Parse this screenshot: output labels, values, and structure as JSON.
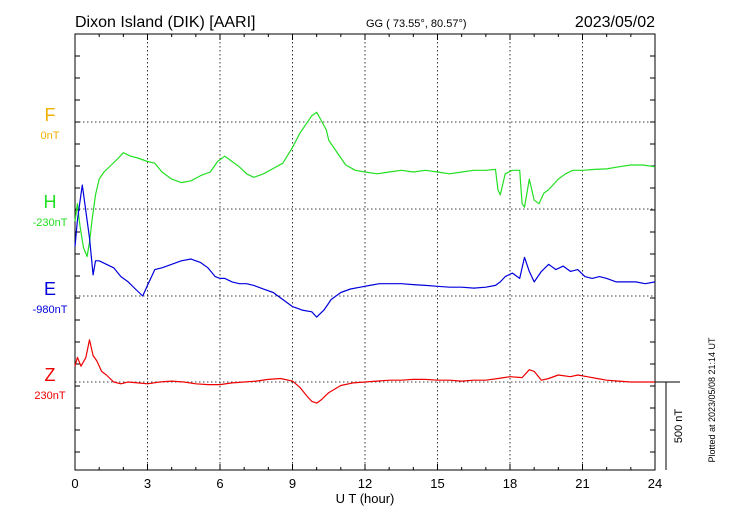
{
  "header": {
    "station": "Dixon Island (DIK)  [AARI]",
    "coords": "GG ( 73.55°,  80.57°)",
    "date": "2023/05/02"
  },
  "side_note": "Plotted at 2023/05/08 21:14 UT",
  "scale_label": "500 nT",
  "chart_data": {
    "type": "line",
    "title": "Dixon Island (DIK)  [AARI]",
    "xlabel": "U T (hour)",
    "xlim": [
      0,
      24
    ],
    "xticks": [
      "0",
      "3",
      "6",
      "9",
      "12",
      "15",
      "18",
      "21",
      "24"
    ],
    "grid": true,
    "series": [
      {
        "name": "F",
        "baseline_label": "0nT",
        "color": "#f0b000",
        "points": []
      },
      {
        "name": "H",
        "baseline_label": "-230nT",
        "color": "#22e022",
        "points": [
          [
            0,
            -300
          ],
          [
            0.1,
            -200
          ],
          [
            0.2,
            -320
          ],
          [
            0.35,
            -450
          ],
          [
            0.5,
            -500
          ],
          [
            0.6,
            -420
          ],
          [
            0.7,
            -300
          ],
          [
            0.85,
            -150
          ],
          [
            1.0,
            -60
          ],
          [
            1.2,
            -20
          ],
          [
            1.5,
            20
          ],
          [
            1.8,
            60
          ],
          [
            2.0,
            90
          ],
          [
            2.3,
            70
          ],
          [
            2.6,
            60
          ],
          [
            3.0,
            40
          ],
          [
            3.3,
            30
          ],
          [
            3.6,
            -20
          ],
          [
            4.0,
            -60
          ],
          [
            4.4,
            -80
          ],
          [
            4.8,
            -70
          ],
          [
            5.2,
            -40
          ],
          [
            5.6,
            -20
          ],
          [
            5.9,
            40
          ],
          [
            6.2,
            70
          ],
          [
            6.5,
            40
          ],
          [
            6.8,
            10
          ],
          [
            7.1,
            -30
          ],
          [
            7.4,
            -50
          ],
          [
            7.8,
            -30
          ],
          [
            8.2,
            0
          ],
          [
            8.6,
            30
          ],
          [
            9.0,
            120
          ],
          [
            9.3,
            200
          ],
          [
            9.6,
            260
          ],
          [
            9.8,
            300
          ],
          [
            10.0,
            320
          ],
          [
            10.2,
            270
          ],
          [
            10.4,
            220
          ],
          [
            10.5,
            160
          ],
          [
            10.7,
            120
          ],
          [
            10.9,
            80
          ],
          [
            11.2,
            20
          ],
          [
            11.6,
            -10
          ],
          [
            12.0,
            -20
          ],
          [
            12.5,
            -30
          ],
          [
            13.0,
            -20
          ],
          [
            13.5,
            -10
          ],
          [
            14.0,
            -20
          ],
          [
            14.5,
            -10
          ],
          [
            15.0,
            -20
          ],
          [
            15.5,
            -30
          ],
          [
            16.0,
            -20
          ],
          [
            16.5,
            -10
          ],
          [
            17.0,
            -10
          ],
          [
            17.4,
            -5
          ],
          [
            17.5,
            -120
          ],
          [
            17.6,
            -150
          ],
          [
            17.8,
            -30
          ],
          [
            18.1,
            -10
          ],
          [
            18.4,
            -10
          ],
          [
            18.5,
            -200
          ],
          [
            18.6,
            -220
          ],
          [
            18.8,
            -60
          ],
          [
            19.0,
            -180
          ],
          [
            19.2,
            -200
          ],
          [
            19.4,
            -140
          ],
          [
            19.6,
            -120
          ],
          [
            19.8,
            -90
          ],
          [
            20.0,
            -60
          ],
          [
            20.3,
            -30
          ],
          [
            20.6,
            -10
          ],
          [
            21.0,
            -10
          ],
          [
            21.5,
            -5
          ],
          [
            22.0,
            -2
          ],
          [
            22.5,
            10
          ],
          [
            23.0,
            20
          ],
          [
            23.5,
            20
          ],
          [
            24.0,
            10
          ]
        ]
      },
      {
        "name": "E",
        "baseline_label": "-980nT",
        "color": "#0000dd",
        "points": [
          [
            0,
            -700
          ],
          [
            0.1,
            -550
          ],
          [
            0.2,
            -450
          ],
          [
            0.3,
            -350
          ],
          [
            0.45,
            -500
          ],
          [
            0.6,
            -650
          ],
          [
            0.75,
            -860
          ],
          [
            0.85,
            -780
          ],
          [
            1.0,
            -780
          ],
          [
            1.3,
            -800
          ],
          [
            1.6,
            -820
          ],
          [
            1.9,
            -870
          ],
          [
            2.2,
            -900
          ],
          [
            2.5,
            -940
          ],
          [
            2.8,
            -980
          ],
          [
            3.0,
            -920
          ],
          [
            3.3,
            -830
          ],
          [
            3.6,
            -820
          ],
          [
            4.0,
            -800
          ],
          [
            4.4,
            -780
          ],
          [
            4.8,
            -770
          ],
          [
            5.2,
            -790
          ],
          [
            5.5,
            -820
          ],
          [
            5.8,
            -870
          ],
          [
            6.0,
            -880
          ],
          [
            6.2,
            -880
          ],
          [
            6.5,
            -900
          ],
          [
            6.8,
            -910
          ],
          [
            7.1,
            -910
          ],
          [
            7.4,
            -920
          ],
          [
            7.8,
            -940
          ],
          [
            8.2,
            -960
          ],
          [
            8.6,
            -1000
          ],
          [
            9.0,
            -1040
          ],
          [
            9.4,
            -1060
          ],
          [
            9.8,
            -1070
          ],
          [
            10.0,
            -1100
          ],
          [
            10.3,
            -1060
          ],
          [
            10.6,
            -1000
          ],
          [
            11.0,
            -960
          ],
          [
            11.4,
            -940
          ],
          [
            11.8,
            -930
          ],
          [
            12.2,
            -920
          ],
          [
            12.6,
            -910
          ],
          [
            13.0,
            -910
          ],
          [
            13.5,
            -910
          ],
          [
            14.0,
            -915
          ],
          [
            14.5,
            -920
          ],
          [
            15.0,
            -925
          ],
          [
            15.5,
            -930
          ],
          [
            16.0,
            -930
          ],
          [
            16.5,
            -935
          ],
          [
            17.0,
            -930
          ],
          [
            17.4,
            -920
          ],
          [
            17.6,
            -900
          ],
          [
            17.8,
            -870
          ],
          [
            18.1,
            -850
          ],
          [
            18.4,
            -880
          ],
          [
            18.6,
            -760
          ],
          [
            18.8,
            -840
          ],
          [
            19.0,
            -900
          ],
          [
            19.3,
            -840
          ],
          [
            19.6,
            -800
          ],
          [
            19.9,
            -830
          ],
          [
            20.2,
            -810
          ],
          [
            20.5,
            -840
          ],
          [
            20.8,
            -830
          ],
          [
            21.1,
            -870
          ],
          [
            21.4,
            -880
          ],
          [
            21.7,
            -870
          ],
          [
            22.0,
            -880
          ],
          [
            22.4,
            -900
          ],
          [
            22.8,
            -900
          ],
          [
            23.2,
            -900
          ],
          [
            23.6,
            -910
          ],
          [
            24.0,
            -900
          ]
        ]
      },
      {
        "name": "Z",
        "baseline_label": "230nT",
        "color": "#ee0000",
        "points": [
          [
            0,
            320
          ],
          [
            0.1,
            370
          ],
          [
            0.25,
            320
          ],
          [
            0.45,
            370
          ],
          [
            0.6,
            470
          ],
          [
            0.75,
            380
          ],
          [
            0.9,
            350
          ],
          [
            1.1,
            290
          ],
          [
            1.3,
            270
          ],
          [
            1.6,
            230
          ],
          [
            1.9,
            220
          ],
          [
            2.2,
            230
          ],
          [
            2.6,
            225
          ],
          [
            3.0,
            220
          ],
          [
            3.5,
            230
          ],
          [
            4.0,
            235
          ],
          [
            4.5,
            230
          ],
          [
            5.0,
            220
          ],
          [
            5.5,
            215
          ],
          [
            6.0,
            215
          ],
          [
            6.5,
            225
          ],
          [
            7.0,
            230
          ],
          [
            7.5,
            235
          ],
          [
            8.0,
            245
          ],
          [
            8.5,
            250
          ],
          [
            9.0,
            235
          ],
          [
            9.3,
            200
          ],
          [
            9.6,
            150
          ],
          [
            9.8,
            120
          ],
          [
            10.0,
            110
          ],
          [
            10.2,
            130
          ],
          [
            10.5,
            170
          ],
          [
            11.0,
            210
          ],
          [
            11.5,
            225
          ],
          [
            12.0,
            230
          ],
          [
            12.5,
            235
          ],
          [
            13.0,
            240
          ],
          [
            13.5,
            240
          ],
          [
            14.0,
            245
          ],
          [
            14.5,
            245
          ],
          [
            15.0,
            240
          ],
          [
            15.5,
            240
          ],
          [
            16.0,
            235
          ],
          [
            16.5,
            240
          ],
          [
            17.0,
            240
          ],
          [
            17.5,
            250
          ],
          [
            18.0,
            260
          ],
          [
            18.5,
            255
          ],
          [
            18.8,
            300
          ],
          [
            19.0,
            290
          ],
          [
            19.3,
            240
          ],
          [
            19.6,
            250
          ],
          [
            20.0,
            270
          ],
          [
            20.5,
            260
          ],
          [
            20.8,
            270
          ],
          [
            21.2,
            260
          ],
          [
            21.6,
            250
          ],
          [
            22.0,
            240
          ],
          [
            22.5,
            235
          ],
          [
            23.0,
            230
          ],
          [
            23.5,
            230
          ],
          [
            24.0,
            230
          ]
        ]
      }
    ]
  }
}
